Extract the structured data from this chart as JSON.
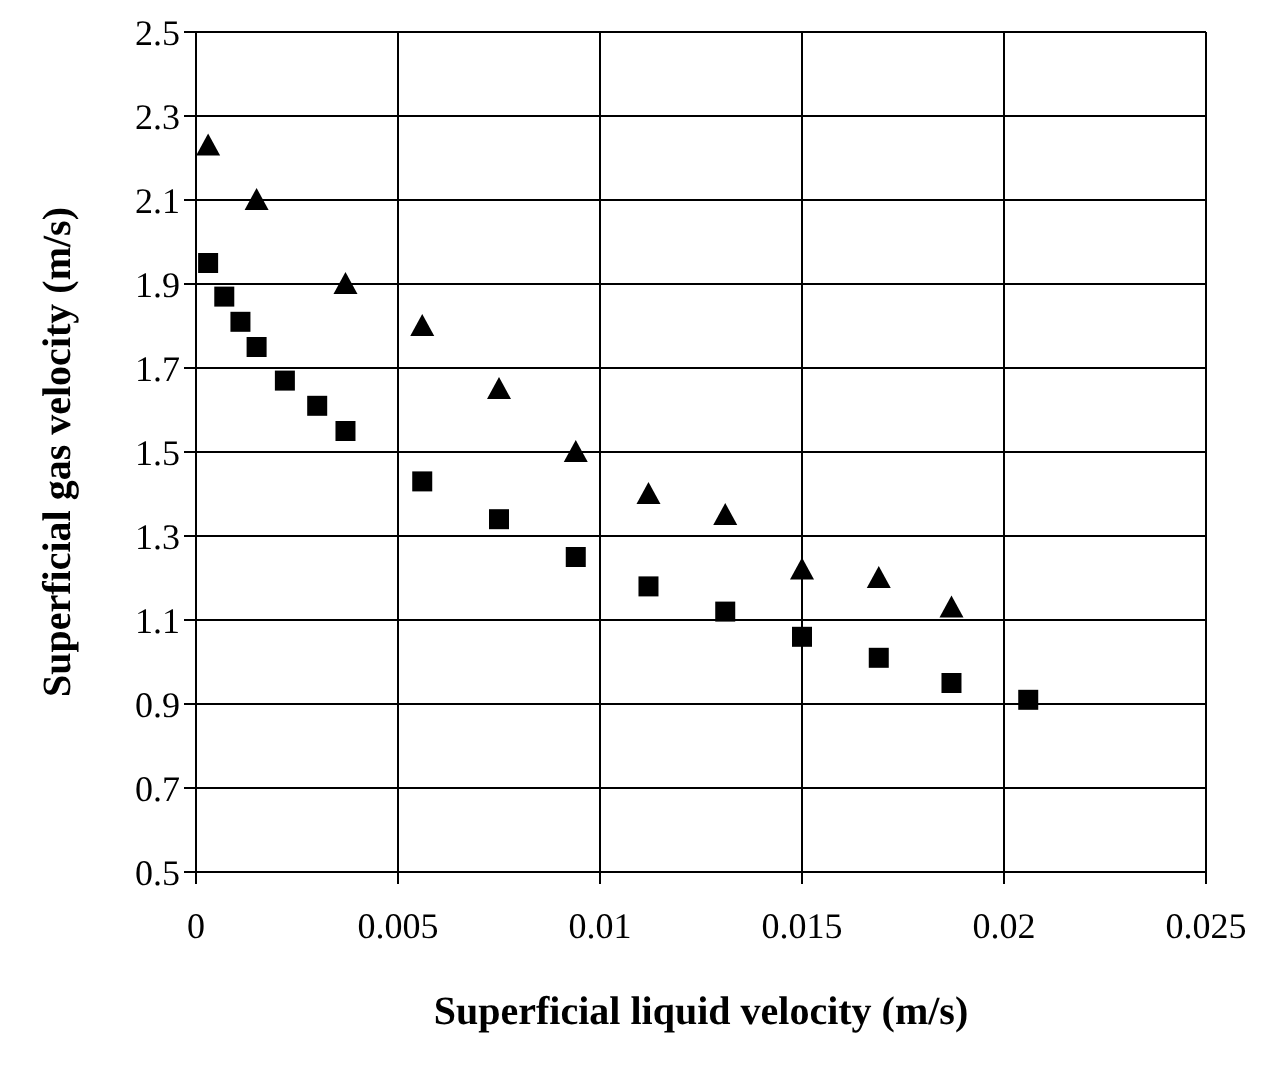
{
  "chart_data": {
    "type": "scatter",
    "xlabel": "Superficial liquid velocity (m/s)",
    "ylabel": "Superficial gas velocity (m/s)",
    "xlim": [
      0,
      0.025
    ],
    "xticks": [
      0,
      0.005,
      0.01,
      0.015,
      0.02,
      0.025
    ],
    "ylim": [
      0.5,
      2.5
    ],
    "yticks": [
      0.5,
      0.7,
      0.9,
      1.1,
      1.3,
      1.5,
      1.7,
      1.9,
      2.1,
      2.3,
      2.5
    ],
    "grid": true,
    "series": [
      {
        "color": "#000000",
        "marker": "square",
        "x": [
          0.0003,
          0.0007,
          0.0011,
          0.0015,
          0.0022,
          0.003,
          0.0037,
          0.0056,
          0.0075,
          0.0094,
          0.0112,
          0.0131,
          0.015,
          0.0169,
          0.0187,
          0.0206
        ],
        "values": [
          1.95,
          1.87,
          1.81,
          1.75,
          1.67,
          1.61,
          1.55,
          1.43,
          1.34,
          1.25,
          1.18,
          1.12,
          1.06,
          1.01,
          0.95,
          0.91
        ]
      },
      {
        "color": "#000000",
        "marker": "triangle",
        "x": [
          0.0003,
          0.0015,
          0.0037,
          0.0056,
          0.0075,
          0.0094,
          0.0112,
          0.0131,
          0.015,
          0.0169,
          0.0187
        ],
        "values": [
          2.23,
          2.1,
          1.9,
          1.8,
          1.65,
          1.5,
          1.4,
          1.35,
          1.22,
          1.2,
          1.13
        ]
      }
    ]
  }
}
